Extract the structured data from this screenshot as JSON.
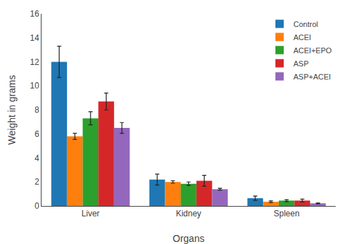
{
  "chart_data": {
    "type": "bar",
    "categories": [
      "Liver",
      "Kidney",
      "Spleen"
    ],
    "series": [
      {
        "name": "Control",
        "values": [
          12.0,
          2.2,
          0.65
        ],
        "errors": [
          1.3,
          0.45,
          0.18
        ]
      },
      {
        "name": "ACEI",
        "values": [
          5.8,
          2.0,
          0.35
        ],
        "errors": [
          0.25,
          0.1,
          0.07
        ]
      },
      {
        "name": "ACEI+EPO",
        "values": [
          7.3,
          1.85,
          0.45
        ],
        "errors": [
          0.55,
          0.15,
          0.08
        ]
      },
      {
        "name": "ASP",
        "values": [
          8.7,
          2.1,
          0.45
        ],
        "errors": [
          0.7,
          0.45,
          0.12
        ]
      },
      {
        "name": "ASP+ACEI",
        "values": [
          6.5,
          1.4,
          0.22
        ],
        "errors": [
          0.45,
          0.08,
          0.04
        ]
      }
    ],
    "x_label": "Organs",
    "y_label": "Weight in grams",
    "ylim": [
      0,
      16
    ],
    "yticks": [
      0,
      2,
      4,
      6,
      8,
      10,
      12,
      14,
      16
    ],
    "grid": false,
    "legend": "upper right"
  }
}
